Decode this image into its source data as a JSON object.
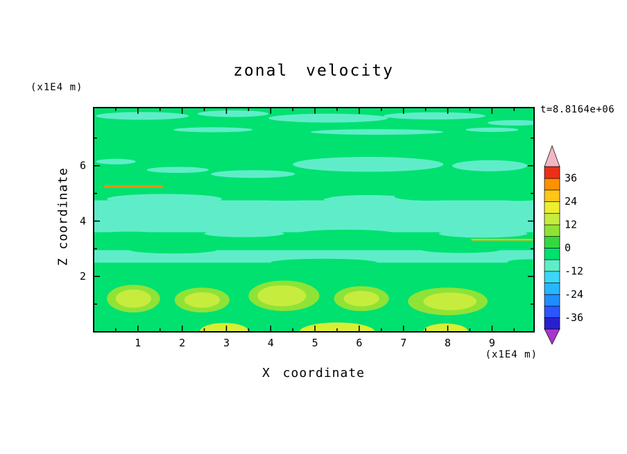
{
  "chart_data": {
    "type": "contour",
    "title": "zonal velocity",
    "xlabel": "X coordinate",
    "ylabel": "Z coordinate",
    "x_unit_label": "(x1E4 m)",
    "y_unit_label": "(x1E4 m)",
    "time_annotation": "t=8.8164e+06",
    "xlim": [
      0,
      9.95
    ],
    "ylim": [
      0,
      8.1
    ],
    "x_major_ticks": [
      1,
      2,
      3,
      4,
      5,
      6,
      7,
      8,
      9
    ],
    "x_minor_ticks": [
      0.5,
      1.5,
      2.5,
      3.5,
      4.5,
      5.5,
      6.5,
      7.5,
      8.5,
      9.5
    ],
    "y_major_ticks": [
      2,
      4,
      6
    ],
    "y_minor_ticks": [
      1,
      3,
      5,
      7
    ],
    "grid": false,
    "legend": "colorbar-right",
    "palette": {
      "green": "#00e170",
      "cyan": "#5fedc9",
      "yg1": "#8fe336",
      "yg2": "#c6ec3e",
      "yellow": "#d9ee33",
      "orange": "#ff9100",
      "amber": "#ffc100"
    },
    "field_features": [
      {
        "s": "r",
        "c": "green",
        "x1": 0,
        "z1": 0,
        "x2": 9.95,
        "z2": 8.1
      },
      {
        "s": "e",
        "c": "cyan",
        "x": 1.1,
        "z": 7.8,
        "rx": 1.05,
        "rz": 0.14
      },
      {
        "s": "e",
        "c": "cyan",
        "x": 3.15,
        "z": 7.88,
        "rx": 0.8,
        "rz": 0.12
      },
      {
        "s": "e",
        "c": "cyan",
        "x": 5.3,
        "z": 7.72,
        "rx": 1.35,
        "rz": 0.16
      },
      {
        "s": "e",
        "c": "cyan",
        "x": 7.7,
        "z": 7.8,
        "rx": 1.15,
        "rz": 0.13
      },
      {
        "s": "e",
        "c": "cyan",
        "x": 9.5,
        "z": 7.55,
        "rx": 0.6,
        "rz": 0.1
      },
      {
        "s": "e",
        "c": "cyan",
        "x": 2.7,
        "z": 7.3,
        "rx": 0.9,
        "rz": 0.09
      },
      {
        "s": "e",
        "c": "cyan",
        "x": 6.4,
        "z": 7.22,
        "rx": 1.5,
        "rz": 0.1
      },
      {
        "s": "e",
        "c": "cyan",
        "x": 9.0,
        "z": 7.3,
        "rx": 0.6,
        "rz": 0.08
      },
      {
        "s": "e",
        "c": "cyan",
        "x": 6.2,
        "z": 6.05,
        "rx": 1.7,
        "rz": 0.27
      },
      {
        "s": "e",
        "c": "cyan",
        "x": 8.95,
        "z": 6.0,
        "rx": 0.85,
        "rz": 0.2
      },
      {
        "s": "e",
        "c": "cyan",
        "x": 3.6,
        "z": 5.7,
        "rx": 0.95,
        "rz": 0.14
      },
      {
        "s": "e",
        "c": "cyan",
        "x": 1.9,
        "z": 5.85,
        "rx": 0.7,
        "rz": 0.11
      },
      {
        "s": "e",
        "c": "cyan",
        "x": 0.5,
        "z": 6.15,
        "rx": 0.45,
        "rz": 0.1
      },
      {
        "s": "r",
        "c": "cyan",
        "x1": 0,
        "z1": 3.6,
        "x2": 9.95,
        "z2": 4.75
      },
      {
        "s": "e",
        "c": "cyan",
        "x": 1.6,
        "z": 4.8,
        "rx": 1.3,
        "rz": 0.18
      },
      {
        "s": "e",
        "c": "cyan",
        "x": 6.2,
        "z": 4.78,
        "rx": 1.0,
        "rz": 0.16
      },
      {
        "s": "e",
        "c": "cyan",
        "x": 8.8,
        "z": 3.55,
        "rx": 1.0,
        "rz": 0.15
      },
      {
        "s": "e",
        "c": "cyan",
        "x": 3.4,
        "z": 3.55,
        "rx": 0.9,
        "rz": 0.13
      },
      {
        "s": "e",
        "c": "green",
        "x": 4.3,
        "z": 4.9,
        "rx": 1.1,
        "rz": 0.16
      },
      {
        "s": "e",
        "c": "green",
        "x": 7.6,
        "z": 4.88,
        "rx": 0.8,
        "rz": 0.14
      },
      {
        "s": "e",
        "c": "green",
        "x": 0.8,
        "z": 3.5,
        "rx": 0.8,
        "rz": 0.12
      },
      {
        "s": "e",
        "c": "green",
        "x": 5.7,
        "z": 3.55,
        "rx": 1.1,
        "rz": 0.14
      },
      {
        "s": "e",
        "c": "green",
        "x": 9.6,
        "z": 4.85,
        "rx": 0.55,
        "rz": 0.12
      },
      {
        "s": "r",
        "c": "cyan",
        "x1": 0,
        "z1": 2.5,
        "x2": 9.95,
        "z2": 2.95
      },
      {
        "s": "e",
        "c": "green",
        "x": 1.8,
        "z": 2.97,
        "rx": 1.0,
        "rz": 0.14
      },
      {
        "s": "e",
        "c": "green",
        "x": 5.2,
        "z": 2.5,
        "rx": 1.2,
        "rz": 0.14
      },
      {
        "s": "e",
        "c": "green",
        "x": 8.3,
        "z": 2.97,
        "rx": 0.9,
        "rz": 0.12
      },
      {
        "s": "e",
        "c": "green",
        "x": 9.8,
        "z": 2.52,
        "rx": 0.45,
        "rz": 0.1
      },
      {
        "s": "e",
        "c": "yg1",
        "x": 0.9,
        "z": 1.2,
        "rx": 0.6,
        "rz": 0.5
      },
      {
        "s": "e",
        "c": "yg2",
        "x": 0.9,
        "z": 1.2,
        "rx": 0.4,
        "rz": 0.33
      },
      {
        "s": "e",
        "c": "yg1",
        "x": 2.45,
        "z": 1.15,
        "rx": 0.62,
        "rz": 0.45
      },
      {
        "s": "e",
        "c": "yg2",
        "x": 2.45,
        "z": 1.15,
        "rx": 0.4,
        "rz": 0.28
      },
      {
        "s": "e",
        "c": "yg1",
        "x": 4.3,
        "z": 1.3,
        "rx": 0.8,
        "rz": 0.55
      },
      {
        "s": "e",
        "c": "yg2",
        "x": 4.25,
        "z": 1.3,
        "rx": 0.55,
        "rz": 0.38
      },
      {
        "s": "e",
        "c": "yg1",
        "x": 6.05,
        "z": 1.2,
        "rx": 0.62,
        "rz": 0.45
      },
      {
        "s": "e",
        "c": "yg2",
        "x": 6.05,
        "z": 1.2,
        "rx": 0.4,
        "rz": 0.28
      },
      {
        "s": "e",
        "c": "yg1",
        "x": 8.0,
        "z": 1.1,
        "rx": 0.9,
        "rz": 0.5
      },
      {
        "s": "e",
        "c": "yg2",
        "x": 8.05,
        "z": 1.1,
        "rx": 0.6,
        "rz": 0.32
      },
      {
        "s": "e",
        "c": "yellow",
        "x": 2.95,
        "z": 0.02,
        "rx": 0.55,
        "rz": 0.3
      },
      {
        "s": "e",
        "c": "yellow",
        "x": 5.5,
        "z": 0.0,
        "rx": 0.85,
        "rz": 0.34
      },
      {
        "s": "e",
        "c": "yellow",
        "x": 7.95,
        "z": 0.02,
        "rx": 0.5,
        "rz": 0.28
      },
      {
        "s": "l",
        "c": "orange",
        "x1": 0.25,
        "z1": 5.25,
        "x2": 1.55,
        "z2": 5.25,
        "w": 2.5
      },
      {
        "s": "l",
        "c": "amber",
        "x1": 8.55,
        "z1": 3.33,
        "x2": 9.9,
        "z2": 3.33,
        "w": 2.5
      }
    ],
    "colorbar": {
      "value_min": -42,
      "value_max": 42,
      "step": 6,
      "segment_colors_bottom_to_top": [
        "#2a1fd0",
        "#2b55ff",
        "#1f8dff",
        "#27b6ff",
        "#3bd7f8",
        "#5fedc9",
        "#00e170",
        "#35d83f",
        "#8fe336",
        "#c6ec3e",
        "#eeee2e",
        "#ffc518",
        "#ff9100",
        "#ee2e18"
      ],
      "bottom_arrow_color": "#a936c9",
      "top_arrow_color": "#f2b7c5",
      "labels": [
        "36",
        "24",
        "12",
        "0",
        "-12",
        "-24",
        "-36"
      ],
      "label_values": [
        36,
        24,
        12,
        0,
        -12,
        -24,
        -36
      ]
    }
  }
}
